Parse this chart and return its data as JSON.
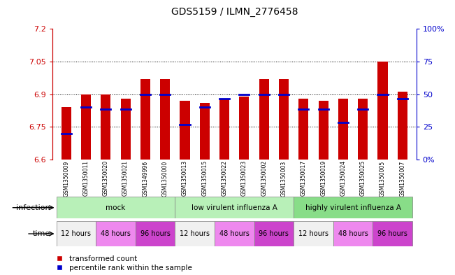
{
  "title": "GDS5159 / ILMN_2776458",
  "samples": [
    "GSM1350009",
    "GSM1350011",
    "GSM1350020",
    "GSM1350021",
    "GSM1349996",
    "GSM1350000",
    "GSM1350013",
    "GSM1350015",
    "GSM1350022",
    "GSM1350023",
    "GSM1350002",
    "GSM1350003",
    "GSM1350017",
    "GSM1350019",
    "GSM1350024",
    "GSM1350025",
    "GSM1350005",
    "GSM1350007"
  ],
  "bar_bottoms": [
    6.6,
    6.6,
    6.6,
    6.6,
    6.6,
    6.6,
    6.6,
    6.6,
    6.6,
    6.6,
    6.6,
    6.6,
    6.6,
    6.6,
    6.6,
    6.6,
    6.6,
    6.6
  ],
  "bar_tops": [
    6.84,
    6.9,
    6.9,
    6.88,
    6.97,
    6.97,
    6.87,
    6.86,
    6.88,
    6.89,
    6.97,
    6.97,
    6.88,
    6.87,
    6.88,
    6.88,
    7.05,
    6.91
  ],
  "blue_marks": [
    6.72,
    6.84,
    6.83,
    6.83,
    6.9,
    6.9,
    6.76,
    6.84,
    6.88,
    6.9,
    6.9,
    6.9,
    6.83,
    6.83,
    6.77,
    6.83,
    6.9,
    6.88
  ],
  "ylim": [
    6.6,
    7.2
  ],
  "yticks_left": [
    6.6,
    6.75,
    6.9,
    7.05,
    7.2
  ],
  "yticks_right": [
    0,
    25,
    50,
    75,
    100
  ],
  "ytick_labels_right": [
    "0%",
    "25",
    "50",
    "75",
    "100%"
  ],
  "bar_color": "#cc0000",
  "blue_color": "#0000cc",
  "bar_width": 0.5,
  "infection_data": [
    {
      "start": 0,
      "end": 6,
      "color": "#b8f0b8",
      "label": "mock"
    },
    {
      "start": 6,
      "end": 12,
      "color": "#b8f0b8",
      "label": "low virulent influenza A"
    },
    {
      "start": 12,
      "end": 18,
      "color": "#88dd88",
      "label": "highly virulent influenza A"
    }
  ],
  "time_data": [
    {
      "start": 0,
      "end": 2,
      "color": "#f0f0f0",
      "label": "12 hours"
    },
    {
      "start": 2,
      "end": 4,
      "color": "#ee88ee",
      "label": "48 hours"
    },
    {
      "start": 4,
      "end": 6,
      "color": "#cc44cc",
      "label": "96 hours"
    },
    {
      "start": 6,
      "end": 8,
      "color": "#f0f0f0",
      "label": "12 hours"
    },
    {
      "start": 8,
      "end": 10,
      "color": "#ee88ee",
      "label": "48 hours"
    },
    {
      "start": 10,
      "end": 12,
      "color": "#cc44cc",
      "label": "96 hours"
    },
    {
      "start": 12,
      "end": 14,
      "color": "#f0f0f0",
      "label": "12 hours"
    },
    {
      "start": 14,
      "end": 16,
      "color": "#ee88ee",
      "label": "48 hours"
    },
    {
      "start": 16,
      "end": 18,
      "color": "#cc44cc",
      "label": "96 hours"
    }
  ],
  "grid_values": [
    6.75,
    6.9,
    7.05
  ],
  "left_axis_color": "#cc0000",
  "right_axis_color": "#0000cc"
}
